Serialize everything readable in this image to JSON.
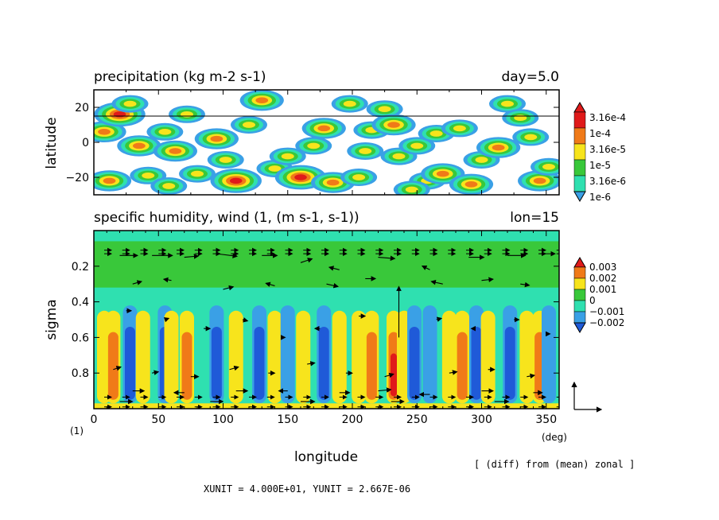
{
  "chart_data": [
    {
      "type": "heatmap",
      "title": "precipitation (kg m-2 s-1)",
      "right_title": "day=5.0",
      "ylabel": "latitude",
      "xlim": [
        0,
        360
      ],
      "ylim": [
        -30,
        30
      ],
      "yticks": [
        -20,
        0,
        20
      ],
      "ytick_labels": [
        "−20",
        "0",
        "20"
      ],
      "reference_line_lat": 15,
      "colorbar": {
        "labels": [
          "3.16e-4",
          "1e-4",
          "3.16e-5",
          "1e-5",
          "3.16e-6",
          "1e-6"
        ],
        "colors": [
          "#e01a1a",
          "#f07a18",
          "#f7e41c",
          "#39c83a",
          "#2fe0b0",
          "#3aa0e6"
        ]
      },
      "precip_cells": [
        [
          8,
          6,
          2
        ],
        [
          20,
          16,
          3
        ],
        [
          35,
          -2,
          2
        ],
        [
          42,
          -19,
          1
        ],
        [
          55,
          6,
          1
        ],
        [
          63,
          -5,
          2
        ],
        [
          80,
          -18,
          1
        ],
        [
          95,
          2,
          2
        ],
        [
          110,
          -22,
          3
        ],
        [
          120,
          10,
          1
        ],
        [
          140,
          -15,
          1
        ],
        [
          150,
          -8,
          1
        ],
        [
          160,
          -20,
          3
        ],
        [
          178,
          8,
          2
        ],
        [
          185,
          -23,
          2
        ],
        [
          198,
          22,
          1
        ],
        [
          210,
          -5,
          1
        ],
        [
          215,
          7,
          1
        ],
        [
          225,
          19,
          1
        ],
        [
          232,
          10,
          2
        ],
        [
          236,
          -8,
          1
        ],
        [
          250,
          -2,
          1
        ],
        [
          258,
          -22,
          1
        ],
        [
          265,
          5,
          1
        ],
        [
          270,
          -18,
          2
        ],
        [
          283,
          8,
          1
        ],
        [
          292,
          -24,
          2
        ],
        [
          300,
          -10,
          1
        ],
        [
          313,
          -3,
          2
        ],
        [
          320,
          22,
          1
        ],
        [
          338,
          3,
          1
        ],
        [
          345,
          -22,
          2
        ],
        [
          352,
          -14,
          1
        ],
        [
          12,
          -22,
          2
        ],
        [
          72,
          16,
          1
        ],
        [
          130,
          24,
          2
        ],
        [
          170,
          -2,
          1
        ],
        [
          205,
          -20,
          1
        ],
        [
          246,
          -27,
          1
        ],
        [
          330,
          14,
          1
        ],
        [
          28,
          22,
          1
        ],
        [
          58,
          -25,
          1
        ],
        [
          102,
          -10,
          1
        ]
      ]
    },
    {
      "type": "heatmap",
      "title": "specific humidity, wind (1, (m s-1, s-1))",
      "right_title": "lon=15",
      "xlabel": "longitude",
      "ylabel": "sigma",
      "xlim": [
        0,
        360
      ],
      "ylim": [
        1.0,
        0.0
      ],
      "xticks": [
        0,
        50,
        100,
        150,
        200,
        250,
        300,
        350
      ],
      "xtick_labels": [
        "0",
        "50",
        "100",
        "150",
        "200",
        "250",
        "300",
        "350"
      ],
      "yticks": [
        0.2,
        0.4,
        0.6,
        0.8
      ],
      "ytick_labels": [
        "0.2",
        "0.4",
        "0.6",
        "0.8"
      ],
      "y_unit": "(1)",
      "x_unit": "(deg)",
      "colorbar": {
        "labels": [
          "0.003",
          "0.002",
          "0.001",
          "0",
          "−0.001",
          "−0.002"
        ],
        "colors": [
          "#e01a1a",
          "#f07a18",
          "#f7e41c",
          "#39c83a",
          "#2fe0b0",
          "#3aa0e6",
          "#1f5ad8"
        ]
      },
      "humidity_columns": [
        [
          8,
          1
        ],
        [
          15,
          2
        ],
        [
          28,
          -2
        ],
        [
          38,
          1
        ],
        [
          55,
          -2
        ],
        [
          60,
          1
        ],
        [
          72,
          2
        ],
        [
          95,
          -2
        ],
        [
          110,
          1
        ],
        [
          128,
          -2
        ],
        [
          140,
          1
        ],
        [
          150,
          -1
        ],
        [
          162,
          1
        ],
        [
          178,
          -2
        ],
        [
          190,
          1
        ],
        [
          205,
          1
        ],
        [
          215,
          2
        ],
        [
          232,
          3
        ],
        [
          240,
          1
        ],
        [
          248,
          -2
        ],
        [
          260,
          -1
        ],
        [
          275,
          1
        ],
        [
          285,
          2
        ],
        [
          296,
          -2
        ],
        [
          305,
          1
        ],
        [
          322,
          -2
        ],
        [
          335,
          1
        ],
        [
          345,
          2
        ],
        [
          352,
          -1
        ]
      ],
      "reference_vector": {
        "u": 40.0,
        "w": 2.667e-06
      },
      "wind_vectors": [
        [
          20,
          0.14,
          1.4,
          0
        ],
        [
          45,
          0.14,
          1.6,
          0
        ],
        [
          70,
          0.15,
          1.1,
          0.1
        ],
        [
          95,
          0.13,
          1.6,
          -0.2
        ],
        [
          130,
          0.14,
          1.2,
          0
        ],
        [
          160,
          0.18,
          0.9,
          0.3
        ],
        [
          190,
          0.22,
          -0.8,
          0.2
        ],
        [
          220,
          0.15,
          1.3,
          -0.1
        ],
        [
          260,
          0.22,
          -0.6,
          0.3
        ],
        [
          290,
          0.15,
          1.2,
          0
        ],
        [
          320,
          0.14,
          1.4,
          0
        ],
        [
          345,
          0.13,
          1.2,
          0
        ],
        [
          30,
          0.3,
          0.7,
          0.2
        ],
        [
          60,
          0.28,
          -0.6,
          0.1
        ],
        [
          100,
          0.33,
          0.8,
          0.2
        ],
        [
          140,
          0.31,
          -0.7,
          0.2
        ],
        [
          180,
          0.3,
          0.9,
          -0.2
        ],
        [
          210,
          0.27,
          0.8,
          0
        ],
        [
          270,
          0.3,
          -0.9,
          0.2
        ],
        [
          300,
          0.28,
          0.9,
          0.1
        ],
        [
          330,
          0.3,
          0.7,
          -0.1
        ],
        [
          25,
          0.45,
          0.4,
          0
        ],
        [
          55,
          0.5,
          0.3,
          0.1
        ],
        [
          85,
          0.55,
          0.5,
          0
        ],
        [
          115,
          0.5,
          0.4,
          -0.1
        ],
        [
          145,
          0.6,
          0.3,
          0
        ],
        [
          175,
          0.55,
          -0.4,
          0
        ],
        [
          205,
          0.48,
          0.5,
          0
        ],
        [
          265,
          0.5,
          0.4,
          0.1
        ],
        [
          295,
          0.55,
          -0.3,
          0
        ],
        [
          325,
          0.5,
          0.4,
          0
        ],
        [
          350,
          0.58,
          0.3,
          0
        ],
        [
          15,
          0.78,
          0.6,
          0.2
        ],
        [
          45,
          0.8,
          0.5,
          0.1
        ],
        [
          75,
          0.82,
          0.6,
          0
        ],
        [
          105,
          0.78,
          0.7,
          0.2
        ],
        [
          135,
          0.8,
          0.5,
          0
        ],
        [
          165,
          0.75,
          0.6,
          0.1
        ],
        [
          195,
          0.8,
          0.5,
          0
        ],
        [
          225,
          0.82,
          0.7,
          0.2
        ],
        [
          275,
          0.8,
          0.6,
          0.1
        ],
        [
          305,
          0.78,
          0.5,
          0
        ],
        [
          335,
          0.82,
          0.6,
          0.1
        ],
        [
          30,
          0.9,
          0.9,
          0
        ],
        [
          70,
          0.91,
          -0.8,
          0
        ],
        [
          110,
          0.9,
          0.9,
          0
        ],
        [
          150,
          0.9,
          -0.7,
          0
        ],
        [
          190,
          0.91,
          0.8,
          0
        ],
        [
          220,
          0.9,
          1.0,
          0.1
        ],
        [
          260,
          0.92,
          -0.8,
          0
        ],
        [
          300,
          0.9,
          0.9,
          0
        ],
        [
          340,
          0.91,
          0.7,
          0
        ],
        [
          20,
          0.96,
          1.0,
          0
        ],
        [
          90,
          0.96,
          1.0,
          0
        ],
        [
          160,
          0.96,
          1.1,
          0
        ],
        [
          230,
          0.96,
          1.0,
          0
        ],
        [
          310,
          0.96,
          1.1,
          0
        ],
        [
          236,
          0.6,
          0,
          4.0
        ]
      ]
    }
  ],
  "footer": {
    "diff_note": "[ (diff) from (mean) zonal ]",
    "units_note": "XUNIT = 4.000E+01, YUNIT = 2.667E-06"
  }
}
